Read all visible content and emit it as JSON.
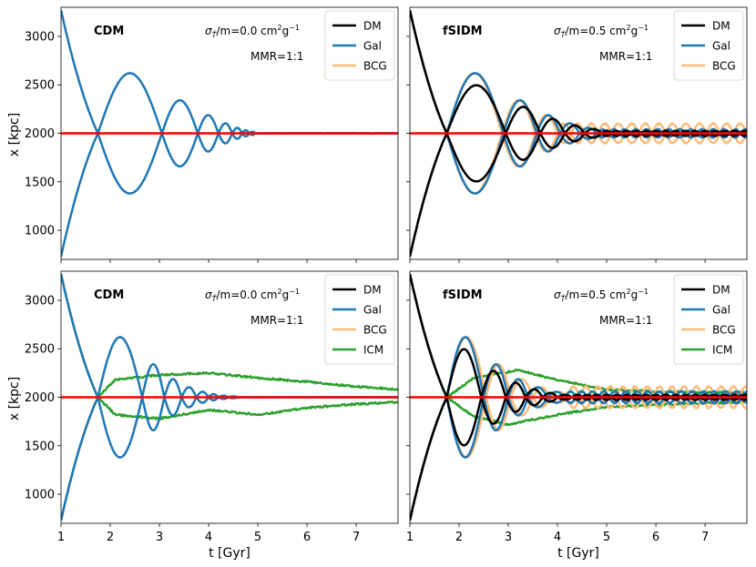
{
  "figure": {
    "xlabel": "t [Gyr]",
    "ylabel": "x [kpc]",
    "xlim": [
      1,
      7.85
    ],
    "ylim": [
      700,
      3300
    ],
    "xticks": [
      1,
      2,
      3,
      4,
      5,
      6,
      7
    ],
    "yticks": [
      1000,
      1500,
      2000,
      2500,
      3000
    ],
    "center": 2000,
    "colors": {
      "DM": "#000000",
      "Gal": "#1f77b4",
      "BCG": "#ffbb78",
      "ICM": "#2ca02c",
      "center": "#ff0000"
    }
  },
  "chart_data": [
    {
      "type": "line",
      "panel": "top-left",
      "label": "CDM",
      "annotation": {
        "cross_section_prefix": "σ",
        "cross_section_sub": "T̃",
        "cross_section_mid": "/m=0.0 cm",
        "cross_section_sup1": "2",
        "cross_section_mid2": "g",
        "cross_section_sup2": "−1"
      },
      "mmr": "MMR=1:1",
      "legend": [
        "DM",
        "Gal",
        "BCG"
      ],
      "legend_position": "top-right",
      "series": [
        {
          "name": "Gal",
          "color": "#1f77b4",
          "amplitude_kpc": 1270,
          "crossings_gyr": [
            1.75,
            3.05,
            3.78,
            4.2,
            4.48,
            4.68,
            4.83,
            4.95
          ],
          "tail_noise_kpc": 5
        }
      ]
    },
    {
      "type": "line",
      "panel": "top-right",
      "label": "fSIDM",
      "annotation": {
        "cross_section_prefix": "σ",
        "cross_section_sub": "T̃",
        "cross_section_mid": "/m=0.5 cm",
        "cross_section_sup1": "2",
        "cross_section_mid2": "g",
        "cross_section_sup2": "−1"
      },
      "mmr": "MMR=1:1",
      "legend": [
        "DM",
        "Gal",
        "BCG"
      ],
      "legend_position": "top-right",
      "series": [
        {
          "name": "BCG",
          "color": "#ffbb78",
          "amplitude_kpc": 1270,
          "crossings_gyr": [
            1.75,
            2.87,
            3.55,
            4.0
          ],
          "tail_amplitude_kpc": 100,
          "tail_period_gyr": 0.55
        },
        {
          "name": "Gal",
          "color": "#1f77b4",
          "amplitude_kpc": 1270,
          "crossings_gyr": [
            1.75,
            2.9,
            3.58,
            4.05,
            4.45,
            4.8
          ],
          "tail_amplitude_kpc": 40,
          "tail_period_gyr": 0.45
        },
        {
          "name": "DM",
          "color": "#000000",
          "amplitude_kpc": 1270,
          "crossings_gyr": [
            1.75,
            2.95,
            3.65,
            4.15,
            4.55,
            4.9
          ],
          "tail_amplitude_kpc": 25,
          "tail_period_gyr": 0.4
        }
      ]
    },
    {
      "type": "line",
      "panel": "bottom-left",
      "label": "CDM",
      "annotation": {
        "cross_section_prefix": "σ",
        "cross_section_sub": "T̃",
        "cross_section_mid": "/m=0.0 cm",
        "cross_section_sup1": "2",
        "cross_section_mid2": "g",
        "cross_section_sup2": "−1"
      },
      "mmr": "MMR=1:1",
      "legend": [
        "DM",
        "Gal",
        "BCG",
        "ICM"
      ],
      "legend_position": "top-right",
      "series": [
        {
          "name": "ICM",
          "color": "#2ca02c",
          "amplitude_kpc": 1270,
          "crossings_gyr": [
            1.75
          ],
          "upper_envelope": [
            [
              1.75,
              2000
            ],
            [
              2.1,
              2180
            ],
            [
              3.0,
              2230
            ],
            [
              4.0,
              2250
            ],
            [
              5.0,
              2200
            ],
            [
              6.0,
              2160
            ],
            [
              7.0,
              2110
            ],
            [
              7.85,
              2080
            ]
          ],
          "lower_envelope": [
            [
              1.75,
              2000
            ],
            [
              2.1,
              1820
            ],
            [
              3.0,
              1780
            ],
            [
              4.0,
              1870
            ],
            [
              5.0,
              1820
            ],
            [
              6.0,
              1890
            ],
            [
              7.0,
              1930
            ],
            [
              7.85,
              1950
            ]
          ]
        },
        {
          "name": "Gal",
          "color": "#1f77b4",
          "amplitude_kpc": 1270,
          "crossings_gyr": [
            1.75,
            2.65,
            3.1,
            3.45,
            3.75,
            4.0,
            4.2,
            4.4,
            4.6
          ],
          "tail_noise_kpc": 5
        }
      ]
    },
    {
      "type": "line",
      "panel": "bottom-right",
      "label": "fSIDM",
      "annotation": {
        "cross_section_prefix": "σ",
        "cross_section_sub": "T̃",
        "cross_section_mid": "/m=0.5 cm",
        "cross_section_sup1": "2",
        "cross_section_mid2": "g",
        "cross_section_sup2": "−1"
      },
      "mmr": "MMR=1:1",
      "legend": [
        "DM",
        "Gal",
        "BCG",
        "ICM"
      ],
      "legend_position": "top-right",
      "series": [
        {
          "name": "ICM",
          "color": "#2ca02c",
          "amplitude_kpc": 1270,
          "crossings_gyr": [
            1.75
          ],
          "upper_envelope": [
            [
              1.75,
              2000
            ],
            [
              2.3,
              2200
            ],
            [
              3.2,
              2280
            ],
            [
              4.0,
              2180
            ],
            [
              5.0,
              2080
            ],
            [
              6.0,
              2060
            ],
            [
              7.0,
              2050
            ],
            [
              7.85,
              2050
            ]
          ],
          "lower_envelope": [
            [
              1.75,
              2000
            ],
            [
              2.3,
              1800
            ],
            [
              3.0,
              1720
            ],
            [
              4.0,
              1820
            ],
            [
              5.0,
              1900
            ],
            [
              6.0,
              1920
            ],
            [
              7.0,
              1940
            ],
            [
              7.85,
              1950
            ]
          ]
        },
        {
          "name": "BCG",
          "color": "#ffbb78",
          "amplitude_kpc": 1270,
          "crossings_gyr": [
            1.75,
            2.55,
            3.05,
            3.5,
            3.85,
            4.2
          ],
          "tail_amplitude_kpc": 110,
          "tail_period_gyr": 0.5
        },
        {
          "name": "Gal",
          "color": "#1f77b4",
          "amplitude_kpc": 1270,
          "crossings_gyr": [
            1.75,
            2.5,
            3.0,
            3.4,
            3.8,
            4.15
          ],
          "tail_amplitude_kpc": 60,
          "tail_period_gyr": 0.45
        },
        {
          "name": "DM",
          "color": "#000000",
          "amplitude_kpc": 1270,
          "crossings_gyr": [
            1.75,
            2.45,
            2.95,
            3.35,
            3.7,
            4.0,
            4.3
          ],
          "tail_amplitude_kpc": 25,
          "tail_period_gyr": 0.4
        }
      ]
    }
  ]
}
